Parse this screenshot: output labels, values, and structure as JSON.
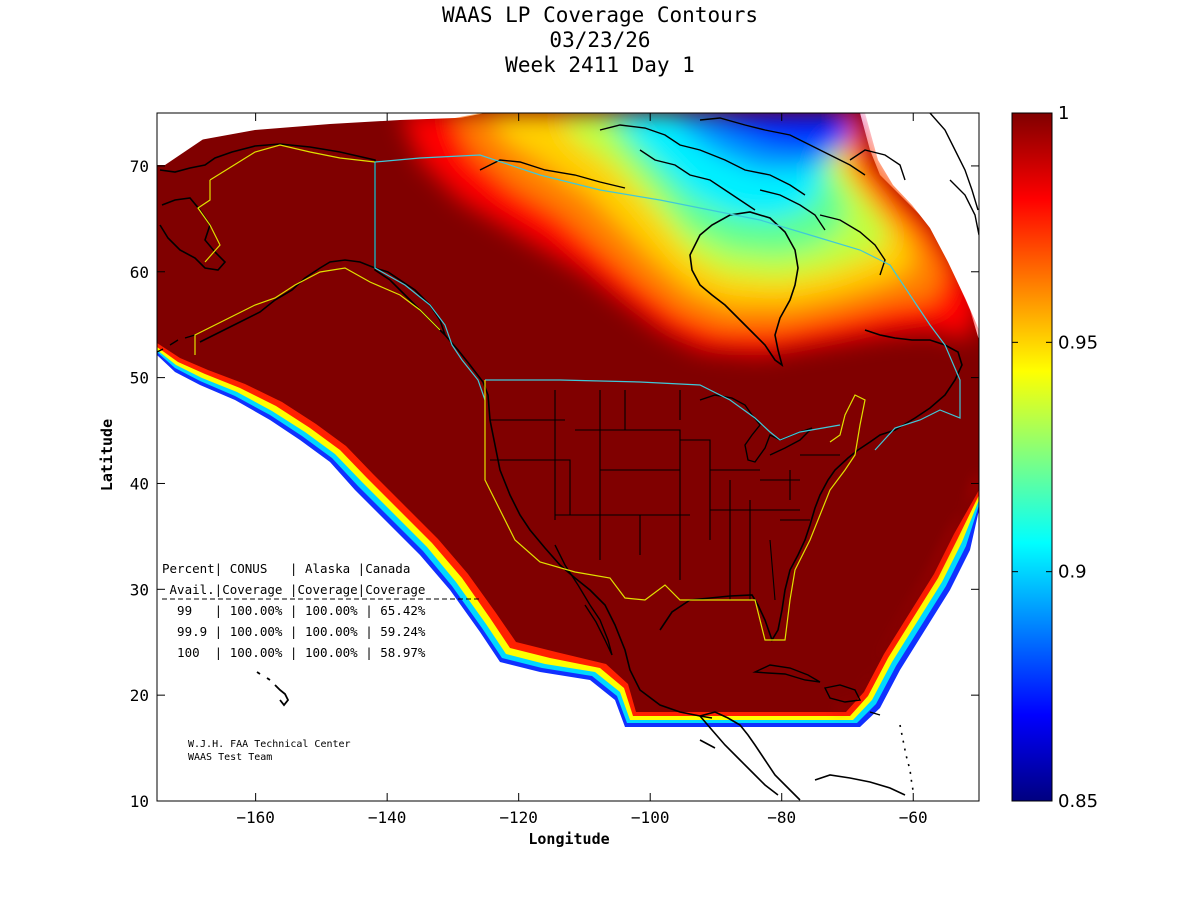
{
  "title": {
    "line1": "WAAS LP Coverage Contours",
    "line2": "03/23/26",
    "line3": "Week 2411 Day 1"
  },
  "axes": {
    "xlabel": "Longitude",
    "ylabel": "Latitude",
    "xlim": [
      -175,
      -50
    ],
    "ylim": [
      10,
      75
    ],
    "xticks": [
      -160,
      -140,
      -120,
      -100,
      -80,
      -60
    ],
    "yticks": [
      10,
      20,
      30,
      40,
      50,
      60,
      70
    ]
  },
  "colorbar": {
    "range": [
      0.85,
      1
    ],
    "tick_values": [
      0.85,
      0.9,
      0.95,
      1
    ],
    "tick_labels": [
      "0.85",
      "0.9",
      "0.95",
      "1"
    ]
  },
  "table": {
    "header1": "Percent| CONUS   | Alaska |Canada",
    "header2": " Avail.|Coverage |Coverage|Coverage",
    "rows": [
      "  99   | 100.00% | 100.00% | 65.42%",
      "  99.9 | 100.00% | 100.00% | 59.24%",
      "  100  | 100.00% | 100.00% | 58.97%"
    ]
  },
  "credit": {
    "line1": "W.J.H. FAA Technical Center",
    "line2": "WAAS Test Team"
  },
  "colors": {
    "full_coverage": "#800000",
    "border_us": "#e0e000",
    "border_canada": "#40c8d8",
    "coastline": "#000000"
  }
}
